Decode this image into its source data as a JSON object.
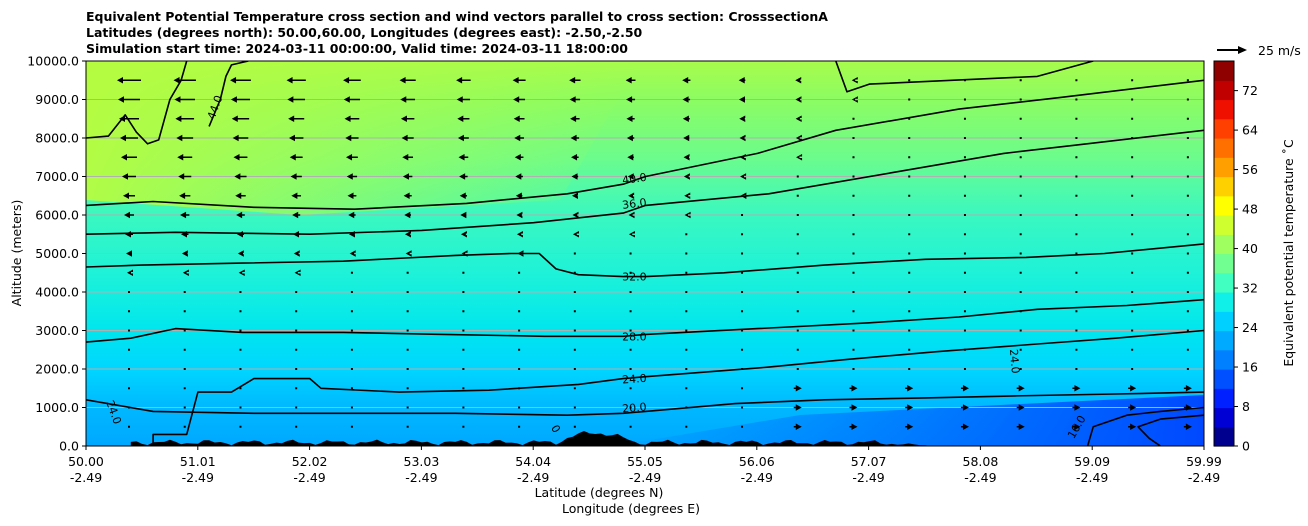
{
  "chart_data": {
    "type": "heatmap",
    "title_lines": [
      "Equivalent Potential Temperature cross section and wind vectors parallel to cross section: CrosssectionA",
      "Latitudes (degrees north): 50.00,60.00, Longitudes (degrees east): -2.50,-2.50",
      "Simulation start time: 2024-03-11 00:00:00, Valid time: 2024-03-11 18:00:00"
    ],
    "ylabel": "Altitude (meters)",
    "xlabel_lat": "Latitude (degrees N)",
    "xlabel_lon": "Longitude (degrees E)",
    "ylim": [
      0,
      10000
    ],
    "yticks": [
      0,
      1000,
      2000,
      3000,
      4000,
      5000,
      6000,
      7000,
      8000,
      9000,
      10000
    ],
    "ytick_labels": [
      "0.0",
      "1000.0",
      "2000.0",
      "3000.0",
      "4000.0",
      "5000.0",
      "6000.0",
      "7000.0",
      "8000.0",
      "9000.0",
      "10000.0"
    ],
    "xticks_lat": [
      "50.00",
      "51.01",
      "52.02",
      "53.03",
      "54.04",
      "55.05",
      "56.06",
      "57.07",
      "58.08",
      "59.09",
      "59.99"
    ],
    "xticks_lon": [
      "-2.49",
      "-2.49",
      "-2.49",
      "-2.49",
      "-2.49",
      "-2.49",
      "-2.49",
      "-2.49",
      "-2.49",
      "-2.49",
      "-2.49"
    ],
    "grid": "horizontal",
    "colorbar": {
      "label": "Equivalent potential temperature ˚C",
      "range": [
        0,
        78
      ],
      "ticks": [
        0,
        8,
        16,
        24,
        32,
        40,
        48,
        56,
        64,
        72
      ],
      "tick_labels": [
        "0",
        "8",
        "16",
        "24",
        "32",
        "40",
        "48",
        "56",
        "64",
        "72"
      ]
    },
    "quiver_key": {
      "label": "25 m/s",
      "speed": 25
    },
    "contour_labels": [
      {
        "text": "40.0",
        "lat": 54.9,
        "alt": 6950,
        "angle": -8
      },
      {
        "text": "36.0",
        "lat": 54.9,
        "alt": 6300,
        "angle": -7
      },
      {
        "text": "32.0",
        "lat": 54.9,
        "alt": 4400,
        "angle": 0
      },
      {
        "text": "28.0",
        "lat": 54.9,
        "alt": 2850,
        "angle": 0
      },
      {
        "text": "24.0",
        "lat": 54.9,
        "alt": 1750,
        "angle": -4
      },
      {
        "text": "20.0",
        "lat": 54.9,
        "alt": 1000,
        "angle": -5
      },
      {
        "text": "44.0",
        "lat": 51.15,
        "alt": 8800,
        "angle": -70
      },
      {
        "text": "24.0",
        "lat": 50.25,
        "alt": 880,
        "angle": 70
      },
      {
        "text": "24.0",
        "lat": 58.3,
        "alt": 2200,
        "angle": 85
      },
      {
        "text": "16.0",
        "lat": 58.85,
        "alt": 500,
        "angle": -60
      },
      {
        "text": "0",
        "lat": 54.2,
        "alt": 450,
        "angle": 60
      }
    ],
    "contours": [
      {
        "level": 44,
        "points": [
          [
            50.0,
            8000
          ],
          [
            50.2,
            8050
          ],
          [
            50.35,
            8600
          ],
          [
            50.45,
            8150
          ],
          [
            50.55,
            7850
          ],
          [
            50.65,
            7950
          ],
          [
            50.75,
            9000
          ],
          [
            50.85,
            9500
          ],
          [
            50.9,
            10000
          ]
        ]
      },
      {
        "level": 44,
        "points": [
          [
            51.1,
            8300
          ],
          [
            51.2,
            9000
          ],
          [
            51.25,
            9600
          ],
          [
            51.3,
            9900
          ],
          [
            51.45,
            10000
          ]
        ]
      },
      {
        "level": 40,
        "points": [
          [
            50.0,
            6250
          ],
          [
            50.6,
            6350
          ],
          [
            51.5,
            6200
          ],
          [
            52.4,
            6150
          ],
          [
            53.4,
            6300
          ],
          [
            54.3,
            6550
          ],
          [
            54.8,
            6800
          ],
          [
            55.0,
            7000
          ],
          [
            56.0,
            7600
          ],
          [
            56.7,
            8200
          ],
          [
            57.8,
            8750
          ],
          [
            58.7,
            9050
          ],
          [
            59.99,
            9500
          ]
        ]
      },
      {
        "level": 40,
        "points": [
          [
            56.7,
            10000
          ],
          [
            56.8,
            9200
          ],
          [
            57.0,
            9400
          ],
          [
            58.5,
            9600
          ],
          [
            59.0,
            10000
          ]
        ]
      },
      {
        "level": 36,
        "points": [
          [
            50.0,
            5500
          ],
          [
            50.8,
            5550
          ],
          [
            52.0,
            5500
          ],
          [
            53.0,
            5600
          ],
          [
            54.0,
            5800
          ],
          [
            54.8,
            6050
          ],
          [
            55.0,
            6250
          ],
          [
            56.1,
            6550
          ],
          [
            57.2,
            7100
          ],
          [
            58.2,
            7600
          ],
          [
            58.8,
            7800
          ],
          [
            59.99,
            8200
          ]
        ]
      },
      {
        "level": 32,
        "points": [
          [
            50.0,
            4650
          ],
          [
            50.5,
            4700
          ],
          [
            51.4,
            4750
          ],
          [
            52.3,
            4800
          ],
          [
            53.3,
            4950
          ],
          [
            53.8,
            5000
          ],
          [
            54.05,
            5000
          ],
          [
            54.2,
            4600
          ],
          [
            54.4,
            4450
          ],
          [
            54.8,
            4400
          ],
          [
            55.0,
            4400
          ],
          [
            55.7,
            4500
          ],
          [
            56.6,
            4700
          ],
          [
            57.5,
            4850
          ],
          [
            58.4,
            4900
          ],
          [
            59.1,
            5000
          ],
          [
            59.99,
            5250
          ]
        ]
      },
      {
        "level": 28,
        "points": [
          [
            50.0,
            2700
          ],
          [
            50.4,
            2800
          ],
          [
            50.8,
            3050
          ],
          [
            51.4,
            2950
          ],
          [
            52.3,
            2950
          ],
          [
            53.2,
            2900
          ],
          [
            54.1,
            2850
          ],
          [
            54.8,
            2850
          ],
          [
            55.0,
            2900
          ],
          [
            56.0,
            3050
          ],
          [
            57.0,
            3200
          ],
          [
            57.8,
            3350
          ],
          [
            58.5,
            3550
          ],
          [
            59.3,
            3650
          ],
          [
            59.99,
            3800
          ]
        ]
      },
      {
        "level": 24,
        "points": [
          [
            50.6,
            0
          ],
          [
            50.6,
            300
          ],
          [
            50.9,
            300
          ],
          [
            51.0,
            1400
          ],
          [
            51.3,
            1400
          ],
          [
            51.5,
            1750
          ],
          [
            52.0,
            1750
          ],
          [
            52.1,
            1500
          ],
          [
            52.8,
            1400
          ],
          [
            53.6,
            1450
          ],
          [
            54.4,
            1600
          ],
          [
            54.8,
            1750
          ],
          [
            55.0,
            1800
          ],
          [
            56.1,
            2050
          ],
          [
            56.8,
            2250
          ],
          [
            57.6,
            2450
          ],
          [
            58.5,
            2650
          ],
          [
            59.2,
            2800
          ],
          [
            59.99,
            3000
          ]
        ]
      },
      {
        "level": 20,
        "points": [
          [
            50.0,
            1200
          ],
          [
            50.6,
            900
          ],
          [
            51.5,
            850
          ],
          [
            52.4,
            850
          ],
          [
            53.3,
            850
          ],
          [
            54.3,
            800
          ],
          [
            54.8,
            850
          ],
          [
            55.0,
            900
          ],
          [
            55.8,
            1100
          ],
          [
            56.6,
            1200
          ],
          [
            57.5,
            1250
          ],
          [
            58.3,
            1300
          ],
          [
            59.2,
            1350
          ],
          [
            59.99,
            1400
          ]
        ]
      },
      {
        "level": 16,
        "points": [
          [
            58.95,
            0
          ],
          [
            59.0,
            500
          ],
          [
            59.3,
            800
          ],
          [
            59.6,
            900
          ],
          [
            59.99,
            1000
          ]
        ]
      },
      {
        "level": 16,
        "points": [
          [
            59.99,
            800
          ],
          [
            59.6,
            700
          ],
          [
            59.4,
            500
          ],
          [
            59.5,
            200
          ],
          [
            59.6,
            0
          ]
        ]
      }
    ]
  }
}
